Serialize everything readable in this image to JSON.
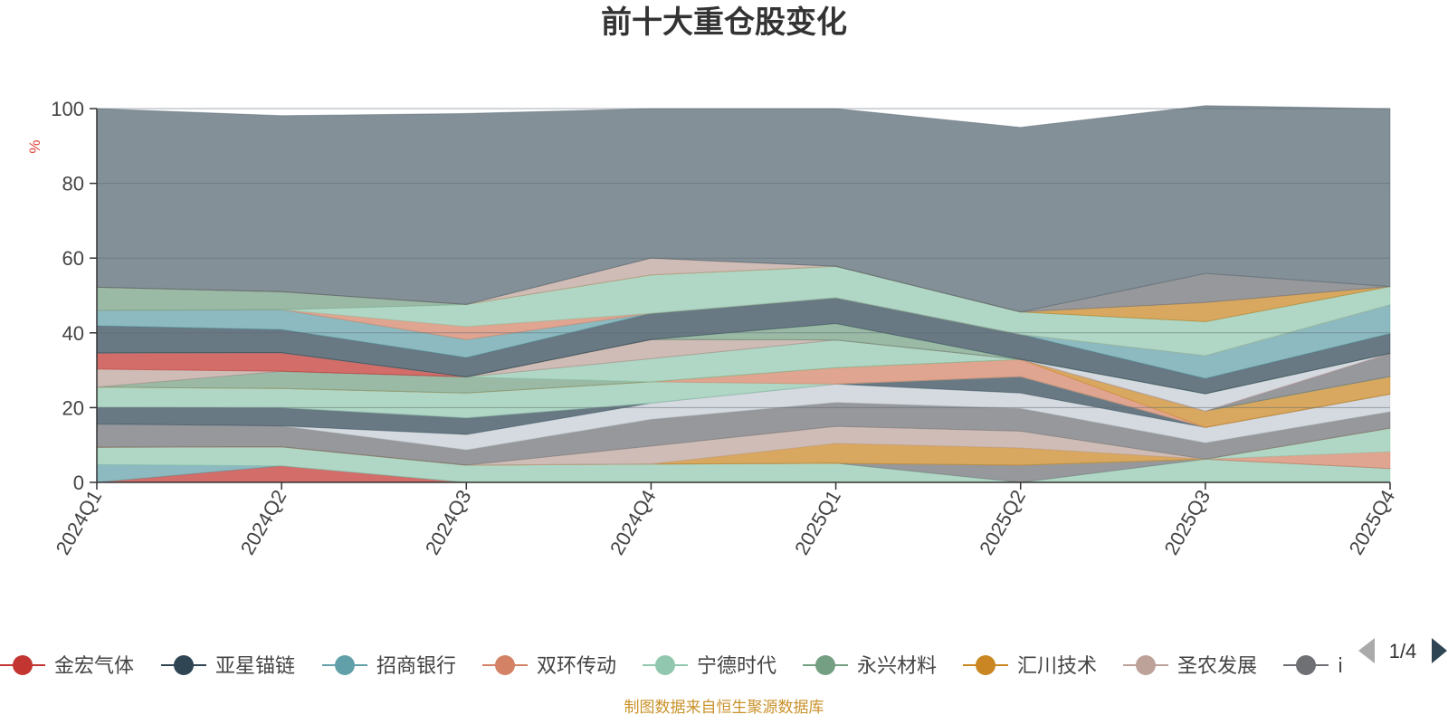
{
  "chart_data": {
    "type": "area",
    "title": "前十大重仓股变化",
    "ylabel": "%",
    "ylim": [
      0,
      100
    ],
    "yticks": [
      0,
      20,
      40,
      60,
      80,
      100
    ],
    "grid": true,
    "stacked": true,
    "categories": [
      "2024Q1",
      "2024Q2",
      "2024Q3",
      "2024Q4",
      "2025Q1",
      "2025Q2",
      "2025Q3",
      "2025Q4"
    ],
    "layers": [
      {
        "color": "#c23531",
        "values": [
          0,
          4.4,
          0,
          0,
          0,
          0,
          0,
          0
        ]
      },
      {
        "color": "#61a0a8",
        "values": [
          4.8,
          0,
          0,
          0,
          0,
          0,
          0,
          0
        ]
      },
      {
        "color": "#91c7ae",
        "values": [
          4.6,
          5.1,
          4.6,
          4.9,
          5.1,
          0,
          6.2,
          3.7
        ]
      },
      {
        "color": "#6e7074",
        "values": [
          0,
          0,
          0,
          0,
          0,
          4.6,
          0,
          0
        ]
      },
      {
        "color": "#d48265",
        "values": [
          0,
          0,
          0,
          0,
          0,
          0,
          0,
          4.5
        ]
      },
      {
        "color": "#91c7ae",
        "values": [
          0,
          0,
          0,
          0,
          0,
          0,
          0,
          6.3
        ]
      },
      {
        "color": "#ca8622",
        "values": [
          0,
          0,
          0,
          0,
          5.3,
          4.6,
          0,
          0
        ]
      },
      {
        "color": "#bda29a",
        "values": [
          0,
          0,
          0,
          4.8,
          4.6,
          4.5,
          0,
          0
        ]
      },
      {
        "color": "#6e7074",
        "values": [
          6.2,
          5.6,
          4.1,
          7.2,
          6.4,
          6.1,
          4.4,
          4.4
        ]
      },
      {
        "color": "#c4ccd3",
        "values": [
          0,
          0,
          4.1,
          4.3,
          4.9,
          4.1,
          4.1,
          4.7
        ]
      },
      {
        "color": "#2f4554",
        "values": [
          4.5,
          4.9,
          4.5,
          0,
          0,
          4.4,
          0,
          0
        ]
      },
      {
        "color": "#c4ccd3",
        "values": [
          0,
          0,
          0,
          0,
          0,
          0,
          0,
          0
        ]
      },
      {
        "color": "#91c7ae",
        "values": [
          5.4,
          5.1,
          6.6,
          5.7,
          0,
          0,
          0,
          0
        ]
      },
      {
        "color": "#d48265",
        "values": [
          0,
          0,
          0,
          0,
          4.4,
          4.6,
          0,
          0
        ]
      },
      {
        "color": "#ca8622",
        "values": [
          0,
          0,
          0,
          0,
          0,
          0,
          4.4,
          4.7
        ]
      },
      {
        "color": "#749f83",
        "values": [
          0,
          4.6,
          4.3,
          0,
          0,
          0,
          0,
          0
        ]
      },
      {
        "color": "#91c7ae",
        "values": [
          0,
          0,
          0,
          6.2,
          7.4,
          0,
          0,
          0
        ]
      },
      {
        "color": "#6e7074",
        "values": [
          0,
          0,
          0,
          0,
          0,
          0,
          0,
          6.2
        ]
      },
      {
        "color": "#bda29a",
        "values": [
          4.8,
          0,
          0,
          5.1,
          0,
          0,
          0,
          0
        ]
      },
      {
        "color": "#c23531",
        "values": [
          4.3,
          5.0,
          0,
          0,
          0,
          0,
          0,
          0
        ]
      },
      {
        "color": "#c4ccd3",
        "values": [
          0,
          0,
          0,
          0,
          0,
          0,
          4.6,
          0
        ]
      },
      {
        "color": "#6e7074",
        "values": [
          0,
          0,
          0,
          0,
          0,
          0,
          0,
          0
        ]
      },
      {
        "color": "#749f83",
        "values": [
          0,
          0,
          0,
          0,
          4.4,
          0,
          0,
          0
        ]
      },
      {
        "color": "#2f4554",
        "values": [
          7.3,
          6.2,
          5.2,
          7.0,
          6.9,
          6.7,
          4.1,
          5.3
        ]
      },
      {
        "color": "#61a0a8",
        "values": [
          4.1,
          5.3,
          4.8,
          0,
          0,
          0,
          6.1,
          7.7
        ]
      },
      {
        "color": "#d48265",
        "values": [
          0,
          0,
          3.5,
          0,
          0,
          0,
          0,
          0
        ]
      },
      {
        "color": "#91c7ae",
        "values": [
          0,
          0,
          5.9,
          10.3,
          8.4,
          6.0,
          9.1,
          4.9
        ]
      },
      {
        "color": "#749f83",
        "values": [
          6.2,
          4.8,
          0,
          0,
          0,
          0,
          0,
          0
        ]
      },
      {
        "color": "#ca8622",
        "values": [
          0,
          0,
          0,
          0,
          0,
          0,
          5.1,
          0
        ]
      },
      {
        "color": "#bda29a",
        "values": [
          0,
          0,
          0,
          4.5,
          0,
          0,
          0,
          0
        ]
      },
      {
        "color": "#6e7074",
        "values": [
          0,
          0,
          0,
          0,
          0,
          0,
          7.8,
          0
        ]
      },
      {
        "color": "#546570",
        "values": [
          47.8,
          47.1,
          51.1,
          40.0,
          42.2,
          49.4,
          44.9,
          47.6
        ]
      }
    ],
    "legend": {
      "position": "bottom",
      "items": [
        {
          "name": "金宏气体",
          "color": "#c23531"
        },
        {
          "name": "亚星锚链",
          "color": "#2f4554"
        },
        {
          "name": "招商银行",
          "color": "#61a0a8"
        },
        {
          "name": "双环传动",
          "color": "#d48265"
        },
        {
          "name": "宁德时代",
          "color": "#91c7ae"
        },
        {
          "name": "永兴材料",
          "color": "#749f83"
        },
        {
          "name": "汇川技术",
          "color": "#ca8622"
        },
        {
          "name": "圣农发展",
          "color": "#bda29a"
        },
        {
          "name": "i",
          "color": "#6e7074"
        }
      ],
      "page": "1/4"
    }
  },
  "source_note": "制图数据来自恒生聚源数据库",
  "colors": {
    "axis": "#333333",
    "grid": "#5f6b72",
    "unit": "#e0443a",
    "source": "#c9922a",
    "pager_active": "#2f4554",
    "pager_inactive": "#aaaaaa"
  }
}
